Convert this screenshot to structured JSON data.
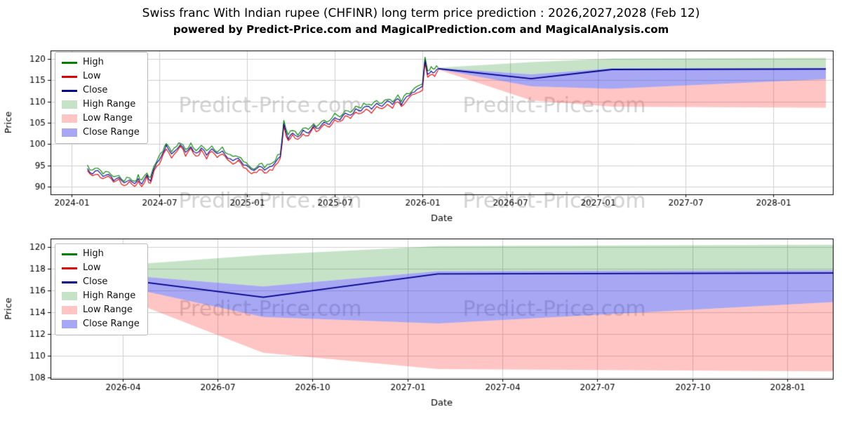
{
  "page": {
    "title": "Swiss franc With Indian rupee (CHFINR) long term price prediction : 2026,2027,2028 (Feb 12)",
    "subtitle": "powered by Predict-Price.com and MagicalPrediction.com and MagicalAnalysis.com",
    "watermark": "Predict-Price.com",
    "background": "#ffffff"
  },
  "colors": {
    "high": "#008000",
    "low": "#dd0000",
    "close": "#00008b",
    "high_range": "rgba(0,128,0,0.22)",
    "low_range": "rgba(255,70,70,0.32)",
    "close_range": "rgba(60,60,230,0.45)",
    "grid": "#cfcfcf",
    "spine": "#000000",
    "tick_text": "#000000",
    "watermark": "rgba(165,165,165,0.5)"
  },
  "legend": [
    {
      "label": "High",
      "type": "line",
      "color": "high"
    },
    {
      "label": "Low",
      "type": "line",
      "color": "low"
    },
    {
      "label": "Close",
      "type": "line",
      "color": "close"
    },
    {
      "label": "High Range",
      "type": "patch",
      "color": "high_range"
    },
    {
      "label": "Low Range",
      "type": "patch",
      "color": "low_range"
    },
    {
      "label": "Close Range",
      "type": "patch",
      "color": "close_range"
    }
  ],
  "chart_data": [
    {
      "type": "line",
      "title": "",
      "xlabel": "Date",
      "ylabel": "Price",
      "xlim": [
        2023.88,
        2028.34
      ],
      "ylim": [
        88.2,
        122.0
      ],
      "grid": true,
      "legend_position": "upper left",
      "xticks": [
        {
          "v": 2024.0,
          "label": "2024-01"
        },
        {
          "v": 2024.5,
          "label": "2024-07"
        },
        {
          "v": 2025.0,
          "label": "2025-01"
        },
        {
          "v": 2025.5,
          "label": "2025-07"
        },
        {
          "v": 2026.0,
          "label": "2026-01"
        },
        {
          "v": 2026.5,
          "label": "2026-07"
        },
        {
          "v": 2027.0,
          "label": "2027-01"
        },
        {
          "v": 2027.5,
          "label": "2027-07"
        },
        {
          "v": 2028.0,
          "label": "2028-01"
        }
      ],
      "yticks": [
        90,
        95,
        100,
        105,
        110,
        115,
        120
      ],
      "historical": {
        "noise_amp": 0.35,
        "hl_spread": 0.75,
        "points": [
          [
            2024.09,
            94.3
          ],
          [
            2024.12,
            93.0
          ],
          [
            2024.15,
            93.8
          ],
          [
            2024.18,
            92.4
          ],
          [
            2024.21,
            92.9
          ],
          [
            2024.24,
            91.4
          ],
          [
            2024.27,
            92.2
          ],
          [
            2024.3,
            90.9
          ],
          [
            2024.33,
            91.6
          ],
          [
            2024.36,
            90.7
          ],
          [
            2024.38,
            91.9
          ],
          [
            2024.4,
            90.6
          ],
          [
            2024.43,
            92.8
          ],
          [
            2024.45,
            91.3
          ],
          [
            2024.47,
            94.2
          ],
          [
            2024.5,
            96.3
          ],
          [
            2024.52,
            97.9
          ],
          [
            2024.54,
            99.8
          ],
          [
            2024.57,
            97.7
          ],
          [
            2024.6,
            98.8
          ],
          [
            2024.62,
            99.9
          ],
          [
            2024.65,
            98.1
          ],
          [
            2024.68,
            99.4
          ],
          [
            2024.71,
            97.9
          ],
          [
            2024.74,
            99.1
          ],
          [
            2024.77,
            97.4
          ],
          [
            2024.8,
            98.9
          ],
          [
            2024.83,
            97.8
          ],
          [
            2024.86,
            98.4
          ],
          [
            2024.89,
            96.7
          ],
          [
            2024.92,
            96.1
          ],
          [
            2024.95,
            96.7
          ],
          [
            2024.98,
            95.1
          ],
          [
            2025.01,
            94.6
          ],
          [
            2025.04,
            93.8
          ],
          [
            2025.07,
            94.8
          ],
          [
            2025.1,
            93.9
          ],
          [
            2025.13,
            94.7
          ],
          [
            2025.16,
            95.6
          ],
          [
            2025.19,
            97.1
          ],
          [
            2025.21,
            104.8
          ],
          [
            2025.235,
            101.2
          ],
          [
            2025.26,
            102.6
          ],
          [
            2025.29,
            101.7
          ],
          [
            2025.32,
            103.3
          ],
          [
            2025.35,
            102.6
          ],
          [
            2025.38,
            104.4
          ],
          [
            2025.41,
            103.7
          ],
          [
            2025.44,
            105.2
          ],
          [
            2025.47,
            104.6
          ],
          [
            2025.5,
            106.2
          ],
          [
            2025.53,
            105.7
          ],
          [
            2025.56,
            107.3
          ],
          [
            2025.59,
            106.8
          ],
          [
            2025.62,
            108.3
          ],
          [
            2025.65,
            107.8
          ],
          [
            2025.68,
            108.9
          ],
          [
            2025.71,
            108.2
          ],
          [
            2025.74,
            109.6
          ],
          [
            2025.77,
            108.9
          ],
          [
            2025.8,
            110.2
          ],
          [
            2025.83,
            109.3
          ],
          [
            2025.86,
            110.7
          ],
          [
            2025.88,
            109.2
          ],
          [
            2025.91,
            111.2
          ],
          [
            2025.94,
            112.1
          ],
          [
            2025.97,
            112.9
          ],
          [
            2026.0,
            113.6
          ],
          [
            2026.015,
            119.7
          ],
          [
            2026.03,
            116.4
          ],
          [
            2026.05,
            117.2
          ],
          [
            2026.07,
            116.9
          ],
          [
            2026.09,
            117.7
          ]
        ]
      },
      "prediction": {
        "x": [
          2026.09,
          2026.62,
          2027.08,
          2028.3
        ],
        "close": [
          117.75,
          115.4,
          117.55,
          117.65
        ],
        "close_range_high": [
          117.9,
          116.4,
          117.8,
          117.9
        ],
        "close_range_low": [
          117.6,
          113.6,
          113.0,
          115.3
        ],
        "high_range_high": [
          117.95,
          119.3,
          120.1,
          120.25
        ],
        "low_range_low": [
          117.5,
          110.3,
          108.8,
          108.55
        ]
      }
    },
    {
      "type": "line",
      "title": "",
      "xlabel": "Date",
      "ylabel": "Price",
      "xlim": [
        2026.06,
        2028.12
      ],
      "ylim": [
        107.9,
        120.8
      ],
      "grid": true,
      "legend_position": "upper left",
      "xticks": [
        {
          "v": 2026.25,
          "label": "2026-04"
        },
        {
          "v": 2026.5,
          "label": "2026-07"
        },
        {
          "v": 2026.75,
          "label": "2026-10"
        },
        {
          "v": 2027.0,
          "label": "2027-01"
        },
        {
          "v": 2027.25,
          "label": "2027-04"
        },
        {
          "v": 2027.5,
          "label": "2027-07"
        },
        {
          "v": 2027.75,
          "label": "2027-10"
        },
        {
          "v": 2028.0,
          "label": "2028-01"
        }
      ],
      "yticks": [
        108,
        110,
        112,
        114,
        116,
        118,
        120
      ],
      "prediction": {
        "x": [
          2026.09,
          2026.62,
          2027.08,
          2028.3
        ],
        "close": [
          117.75,
          115.4,
          117.55,
          117.65
        ],
        "close_range_high": [
          117.9,
          116.4,
          117.8,
          117.9
        ],
        "close_range_low": [
          117.6,
          113.6,
          113.0,
          115.3
        ],
        "high_range_high": [
          117.95,
          119.3,
          120.1,
          120.25
        ],
        "low_range_low": [
          117.5,
          110.3,
          108.8,
          108.55
        ]
      }
    }
  ]
}
